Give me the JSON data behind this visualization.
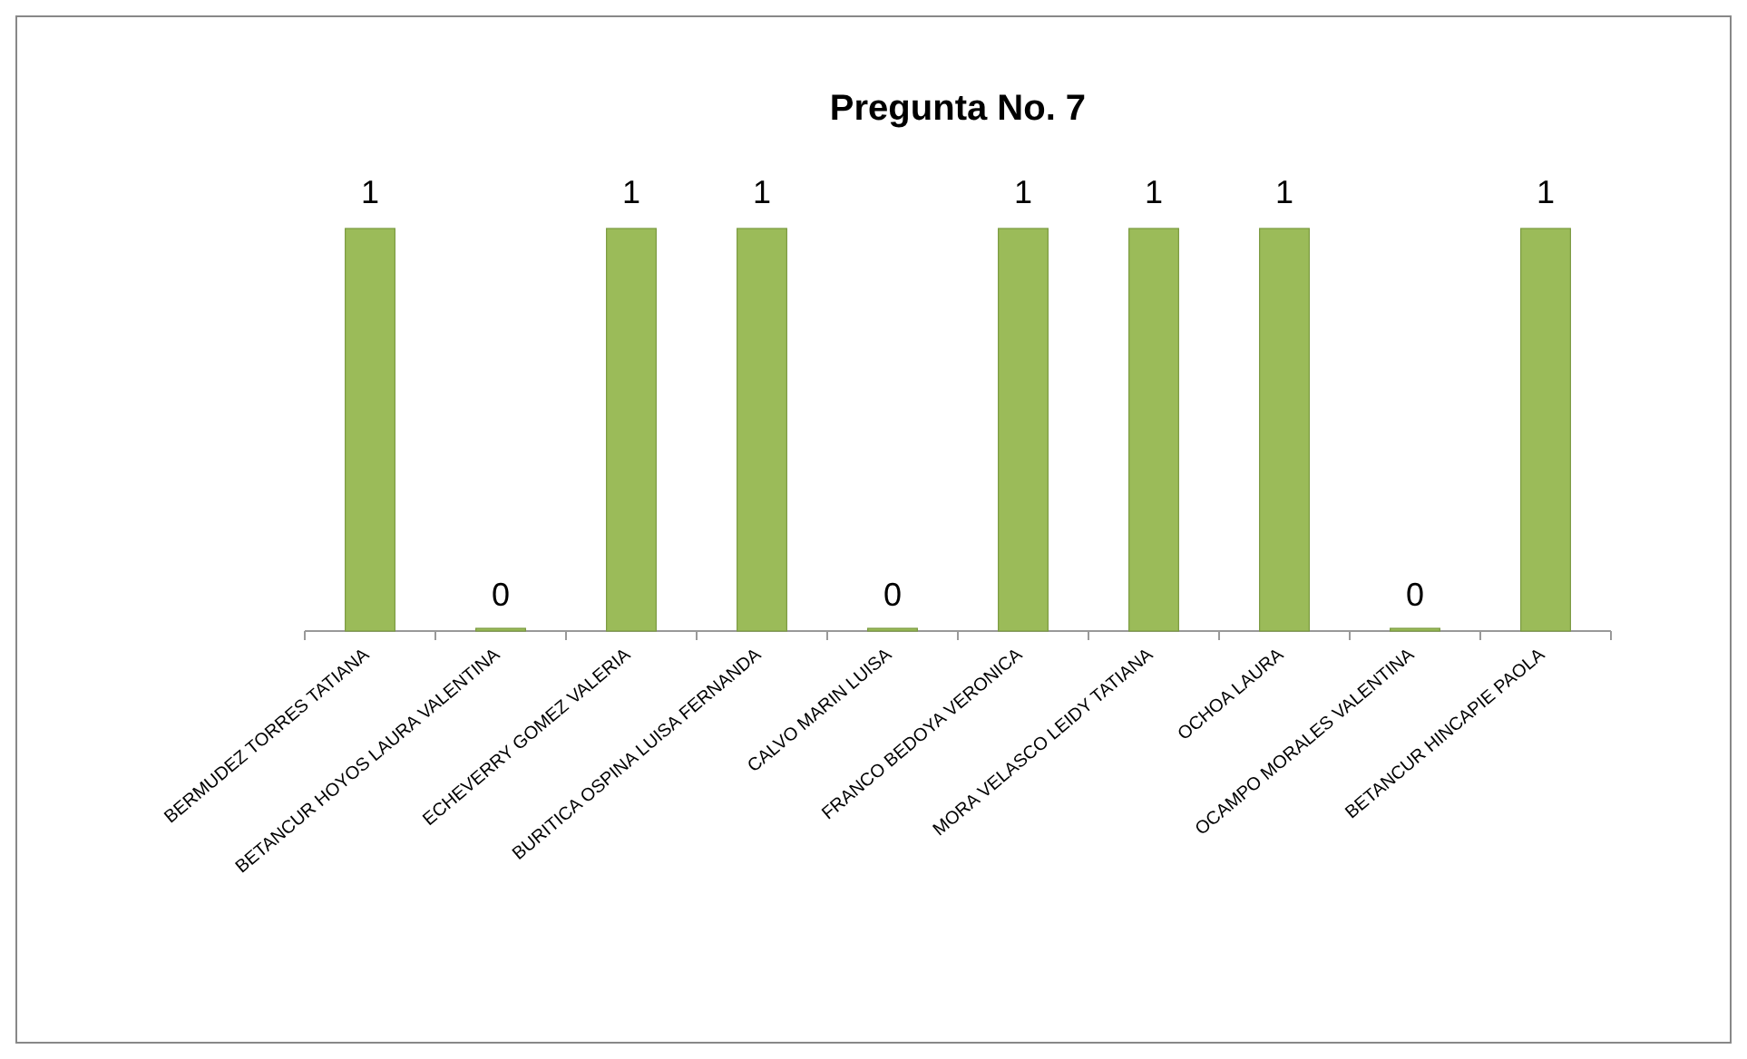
{
  "chart_data": {
    "type": "bar",
    "title": "Pregunta No. 7",
    "categories": [
      "BERMUDEZ TORRES TATIANA",
      "BETANCUR HOYOS LAURA VALENTINA",
      "ECHEVERRY GOMEZ VALERIA",
      "BURITICA OSPINA LUISA FERNANDA",
      "CALVO MARIN LUISA",
      "FRANCO BEDOYA VERONICA",
      "MORA VELASCO LEIDY TATIANA",
      "OCHOA LAURA",
      "OCAMPO MORALES VALENTINA",
      "BETANCUR HINCAPIE PAOLA"
    ],
    "values": [
      1,
      0,
      1,
      1,
      0,
      1,
      1,
      1,
      0,
      1
    ],
    "color": "#9bbb59",
    "data_labels": true
  }
}
